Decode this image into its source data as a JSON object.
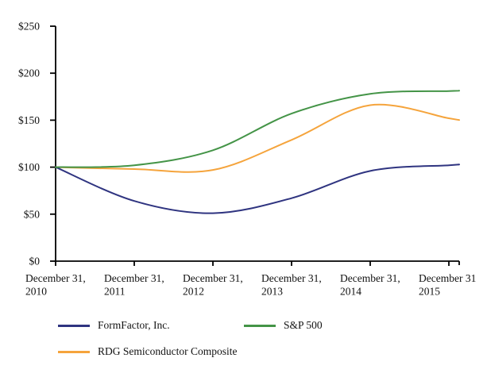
{
  "page": {
    "background": "#ffffff",
    "text_color": "#111111",
    "axis_color": "#000000"
  },
  "chart_data": {
    "type": "line",
    "title": "",
    "smooth": true,
    "grid": false,
    "legend_position": "bottom-left",
    "x_axis": {
      "categories": [
        [
          "December 31,",
          "2010"
        ],
        [
          "December 31,",
          "2011"
        ],
        [
          "December 31,",
          "2012"
        ],
        [
          "December 31,",
          "2013"
        ],
        [
          "December 31,",
          "2014"
        ],
        [
          "December 31",
          "2015"
        ]
      ]
    },
    "y_axis": {
      "range": [
        0,
        250
      ],
      "values": [
        0,
        50,
        100,
        150,
        200,
        250
      ],
      "labels": [
        "$0",
        "$50",
        "$100",
        "$150",
        "$200",
        "$250"
      ]
    },
    "series": [
      {
        "name": "FormFactor, Inc.",
        "color": "#2F3480",
        "values": [
          100,
          64,
          51,
          67,
          96,
          102
        ]
      },
      {
        "name": "S&P 500",
        "color": "#449447",
        "values": [
          100,
          102,
          118,
          157,
          178,
          181
        ]
      },
      {
        "name": "RDG Semiconductor Composite",
        "color": "#F5A43C",
        "values": [
          100,
          98,
          97,
          129,
          166,
          152
        ]
      }
    ]
  }
}
